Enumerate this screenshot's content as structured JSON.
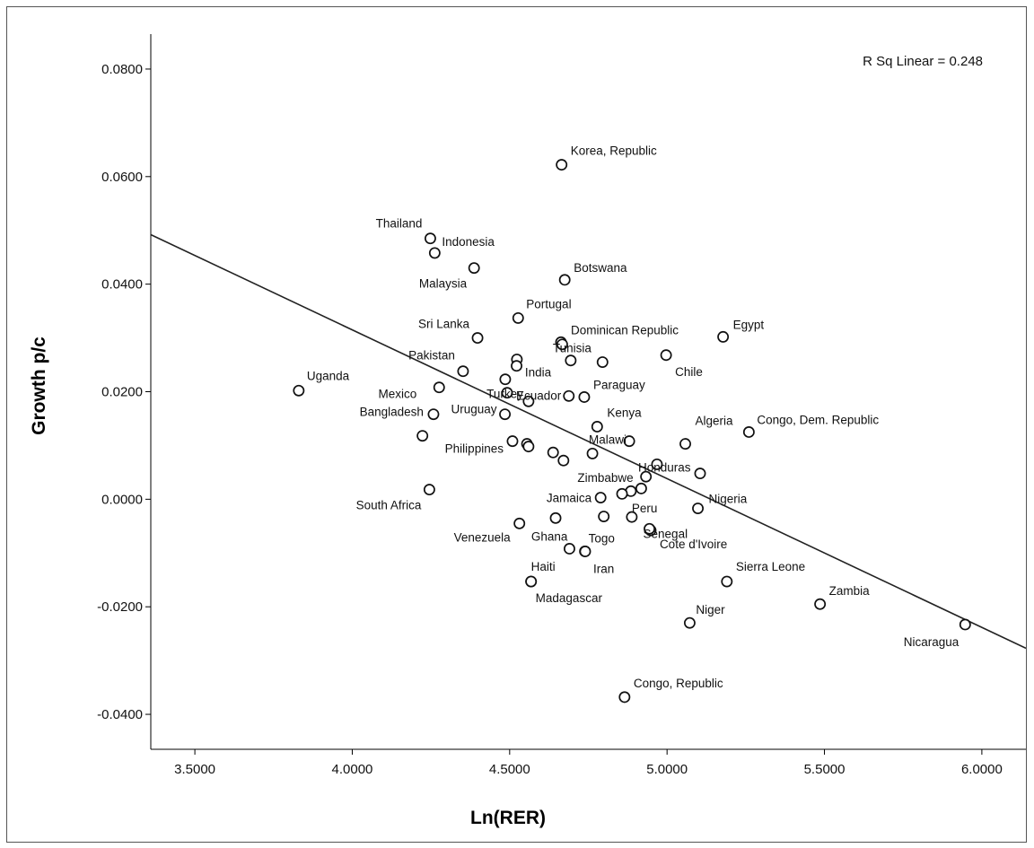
{
  "chart_data": {
    "type": "scatter",
    "xlabel": "Ln(RER)",
    "ylabel": "Growth p/c",
    "xlim": [
      3.36,
      6.14
    ],
    "ylim": [
      -0.0465,
      0.0865
    ],
    "xticks": [
      "3.5000",
      "4.0000",
      "4.5000",
      "5.0000",
      "5.5000",
      "6.0000"
    ],
    "yticks": [
      "-0.0400",
      "-0.0200",
      "0.0000",
      "0.0200",
      "0.0400",
      "0.0600",
      "0.0800"
    ],
    "grid": false,
    "annotation": "R Sq Linear = 0.248",
    "fit_line": {
      "x": [
        3.36,
        6.14
      ],
      "y": [
        0.0492,
        -0.0277
      ]
    },
    "points": [
      {
        "label": "Korea, Republic",
        "x": 4.665,
        "y": 0.0622
      },
      {
        "label": "Thailand",
        "x": 4.248,
        "y": 0.0485
      },
      {
        "label": "Indonesia",
        "x": 4.262,
        "y": 0.0458
      },
      {
        "label": "Malaysia",
        "x": 4.387,
        "y": 0.043
      },
      {
        "label": "Botswana",
        "x": 4.675,
        "y": 0.0408
      },
      {
        "label": "Portugal",
        "x": 4.527,
        "y": 0.0337
      },
      {
        "label": "Sri Lanka",
        "x": 4.398,
        "y": 0.03
      },
      {
        "label": "Dominican Republic",
        "x": 4.663,
        "y": 0.0292
      },
      {
        "label": "",
        "x": 4.667,
        "y": 0.0288
      },
      {
        "label": "Tunisia",
        "x": 4.523,
        "y": 0.026
      },
      {
        "label": "",
        "x": 4.522,
        "y": 0.0248
      },
      {
        "label": "",
        "x": 4.694,
        "y": 0.0258
      },
      {
        "label": "",
        "x": 4.795,
        "y": 0.0255
      },
      {
        "label": "Egypt",
        "x": 5.178,
        "y": 0.0302
      },
      {
        "label": "Chile",
        "x": 4.997,
        "y": 0.0268
      },
      {
        "label": "Pakistan",
        "x": 4.352,
        "y": 0.0238
      },
      {
        "label": "India",
        "x": 4.486,
        "y": 0.0223
      },
      {
        "label": "Ecuador",
        "x": 4.492,
        "y": 0.0198
      },
      {
        "label": "Uganda",
        "x": 3.83,
        "y": 0.0202
      },
      {
        "label": "Mexico",
        "x": 4.276,
        "y": 0.0208
      },
      {
        "label": "Turkey",
        "x": 4.56,
        "y": 0.0182
      },
      {
        "label": "Paraguay",
        "x": 4.737,
        "y": 0.019
      },
      {
        "label": "",
        "x": 4.688,
        "y": 0.0192
      },
      {
        "label": "Bangladesh",
        "x": 4.258,
        "y": 0.0158
      },
      {
        "label": "Uruguay",
        "x": 4.485,
        "y": 0.0158
      },
      {
        "label": "",
        "x": 4.223,
        "y": 0.0118
      },
      {
        "label": "Kenya",
        "x": 4.778,
        "y": 0.0135
      },
      {
        "label": "Congo, Dem. Republic",
        "x": 5.26,
        "y": 0.0125
      },
      {
        "label": "Algeria",
        "x": 5.058,
        "y": 0.0103
      },
      {
        "label": "Malawi",
        "x": 4.763,
        "y": 0.0085
      },
      {
        "label": "",
        "x": 4.88,
        "y": 0.0108
      },
      {
        "label": "Philippines",
        "x": 4.509,
        "y": 0.0108
      },
      {
        "label": "",
        "x": 4.555,
        "y": 0.0103
      },
      {
        "label": "",
        "x": 4.56,
        "y": 0.0098
      },
      {
        "label": "",
        "x": 4.638,
        "y": 0.0087
      },
      {
        "label": "",
        "x": 4.671,
        "y": 0.0072
      },
      {
        "label": "Honduras",
        "x": 4.968,
        "y": 0.0065
      },
      {
        "label": "",
        "x": 5.105,
        "y": 0.0048
      },
      {
        "label": "Zimbabwe",
        "x": 4.933,
        "y": 0.0042
      },
      {
        "label": "South Africa",
        "x": 4.245,
        "y": 0.0018
      },
      {
        "label": "",
        "x": 4.918,
        "y": 0.002
      },
      {
        "label": "",
        "x": 4.885,
        "y": 0.0015
      },
      {
        "label": "",
        "x": 4.857,
        "y": 0.001
      },
      {
        "label": "Jamaica",
        "x": 4.789,
        "y": 0.0003
      },
      {
        "label": "Nigeria",
        "x": 5.098,
        "y": -0.0017
      },
      {
        "label": "Peru",
        "x": 4.888,
        "y": -0.0033
      },
      {
        "label": "",
        "x": 4.799,
        "y": -0.0032
      },
      {
        "label": "",
        "x": 4.646,
        "y": -0.0035
      },
      {
        "label": "Venezuela",
        "x": 4.531,
        "y": -0.0045
      },
      {
        "label": "Cote d'Ivoire",
        "x": 4.948,
        "y": -0.0058
      },
      {
        "label": "Senegal",
        "x": 4.944,
        "y": -0.0055
      },
      {
        "label": "Ghana",
        "x": 4.69,
        "y": -0.0092
      },
      {
        "label": "Togo",
        "x": 4.739,
        "y": -0.0097
      },
      {
        "label": "Iran",
        "x": 4.74,
        "y": -0.0097
      },
      {
        "label": "Sierra Leone",
        "x": 5.19,
        "y": -0.0153
      },
      {
        "label": "Haiti",
        "x": 4.568,
        "y": -0.0153
      },
      {
        "label": "Madagascar",
        "x": 4.568,
        "y": -0.0153
      },
      {
        "label": "Zambia",
        "x": 5.486,
        "y": -0.0195
      },
      {
        "label": "Niger",
        "x": 5.072,
        "y": -0.023
      },
      {
        "label": "Nicaragua",
        "x": 5.947,
        "y": -0.0233
      },
      {
        "label": "Congo, Republic",
        "x": 4.865,
        "y": -0.0368
      }
    ]
  }
}
